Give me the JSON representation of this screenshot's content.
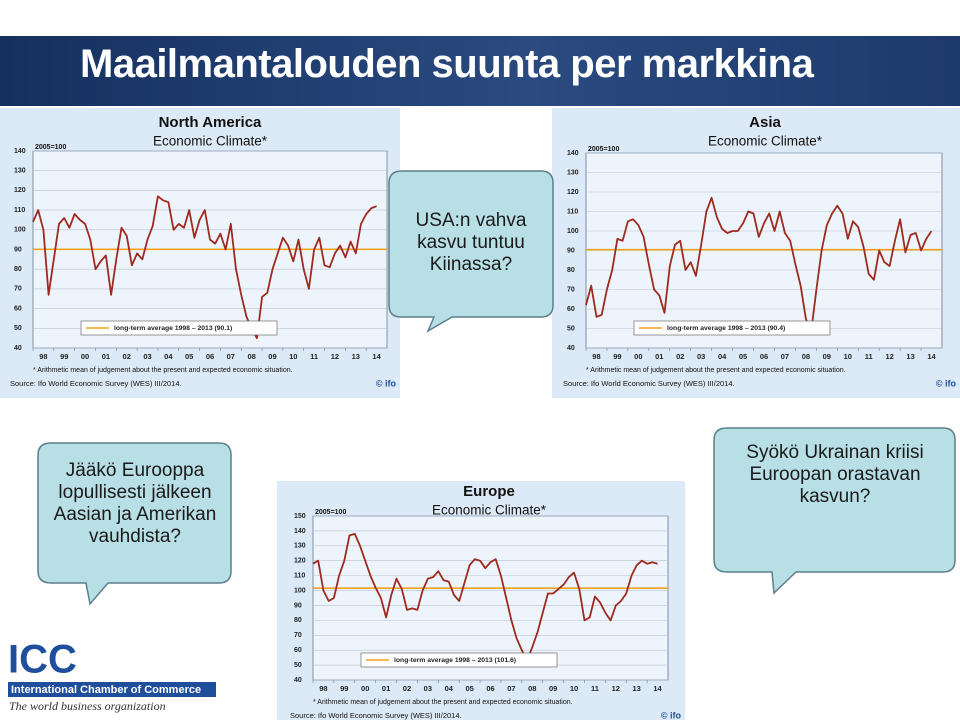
{
  "slide": {
    "title": "Maailmantalouden suunta per markkina",
    "callouts": [
      "USA:n vahva kasvu tuntuu Kiinassa?",
      "Jääkö Eurooppa lopullisesti jälkeen Aasian ja Amerikan vauhdista?",
      "Syökö Ukrainan kriisi Euroopan orastavan kasvun?"
    ],
    "logo": {
      "mark": "ICC",
      "name": "International Chamber of Commerce",
      "tagline": "The world business organization"
    }
  },
  "chart_data": [
    {
      "type": "line",
      "title": "North America",
      "subtitle": "Economic Climate*",
      "base_note": "2005=100",
      "footnote": "* Arithmetic mean of judgement about the present and expected economic situation.",
      "source": "Source: Ifo World Economic Survey (WES) III/2014.",
      "credit": "© ifo",
      "color": "#9e2a1e",
      "x": [
        1998,
        1998.25,
        1998.5,
        1998.75,
        1999,
        1999.25,
        1999.5,
        1999.75,
        2000,
        2000.25,
        2000.5,
        2000.75,
        2001,
        2001.25,
        2001.5,
        2001.75,
        2002,
        2002.25,
        2002.5,
        2002.75,
        2003,
        2003.25,
        2003.5,
        2003.75,
        2004,
        2004.25,
        2004.5,
        2004.75,
        2005,
        2005.25,
        2005.5,
        2005.75,
        2006,
        2006.25,
        2006.5,
        2006.75,
        2007,
        2007.25,
        2007.5,
        2007.75,
        2008,
        2008.25,
        2008.5,
        2008.75,
        2009,
        2009.25,
        2009.5,
        2009.75,
        2010,
        2010.25,
        2010.5,
        2010.75,
        2011,
        2011.25,
        2011.5,
        2011.75,
        2012,
        2012.25,
        2012.5,
        2012.75,
        2013,
        2013.25,
        2013.5,
        2013.75,
        2014,
        2014.25,
        2014.5
      ],
      "values": [
        104,
        110,
        100,
        67,
        85,
        103,
        106,
        101,
        108,
        105,
        103,
        95,
        80,
        84,
        87,
        67,
        85,
        101,
        97,
        82,
        88,
        85,
        95,
        102,
        117,
        115,
        114,
        100,
        103,
        101,
        110,
        96,
        105,
        110,
        95,
        93,
        98,
        90,
        103,
        80,
        67,
        56,
        50,
        45,
        66,
        68,
        80,
        88,
        96,
        92,
        84,
        95,
        80,
        70,
        90,
        96,
        82,
        81,
        88,
        92,
        86,
        94,
        88,
        103,
        108,
        111,
        112
      ],
      "reference": {
        "value": 90.1,
        "label": "long-term average 1998 – 2013 (90.1)",
        "color": "#f0a21e"
      },
      "xlim": [
        1998,
        2015
      ],
      "xticks": [
        {
          "value": 1998,
          "label": "98"
        },
        {
          "value": 1999,
          "label": "99"
        },
        {
          "value": 2000,
          "label": "00"
        },
        {
          "value": 2001,
          "label": "01"
        },
        {
          "value": 2002,
          "label": "02"
        },
        {
          "value": 2003,
          "label": "03"
        },
        {
          "value": 2004,
          "label": "04"
        },
        {
          "value": 2005,
          "label": "05"
        },
        {
          "value": 2006,
          "label": "06"
        },
        {
          "value": 2007,
          "label": "07"
        },
        {
          "value": 2008,
          "label": "08"
        },
        {
          "value": 2009,
          "label": "09"
        },
        {
          "value": 2010,
          "label": "10"
        },
        {
          "value": 2011,
          "label": "11"
        },
        {
          "value": 2012,
          "label": "12"
        },
        {
          "value": 2013,
          "label": "13"
        },
        {
          "value": 2014,
          "label": "14"
        }
      ],
      "ylim": [
        40,
        140
      ],
      "yticks": [
        40,
        50,
        60,
        70,
        80,
        90,
        100,
        110,
        120,
        130,
        140
      ],
      "grid": true
    },
    {
      "type": "line",
      "title": "Asia",
      "subtitle": "Economic Climate*",
      "base_note": "2005=100",
      "footnote": "* Arithmetic mean of judgement about the present and expected economic situation.",
      "source": "Source: Ifo World Economic Survey (WES) III/2014.",
      "credit": "© ifo",
      "color": "#9e2a1e",
      "x": [
        1998,
        1998.25,
        1998.5,
        1998.75,
        1999,
        1999.25,
        1999.5,
        1999.75,
        2000,
        2000.25,
        2000.5,
        2000.75,
        2001,
        2001.25,
        2001.5,
        2001.75,
        2002,
        2002.25,
        2002.5,
        2002.75,
        2003,
        2003.25,
        2003.5,
        2003.75,
        2004,
        2004.25,
        2004.5,
        2004.75,
        2005,
        2005.25,
        2005.5,
        2005.75,
        2006,
        2006.25,
        2006.5,
        2006.75,
        2007,
        2007.25,
        2007.5,
        2007.75,
        2008,
        2008.25,
        2008.5,
        2008.75,
        2009,
        2009.25,
        2009.5,
        2009.75,
        2010,
        2010.25,
        2010.5,
        2010.75,
        2011,
        2011.25,
        2011.5,
        2011.75,
        2012,
        2012.25,
        2012.5,
        2012.75,
        2013,
        2013.25,
        2013.5,
        2013.75,
        2014,
        2014.25,
        2014.5
      ],
      "values": [
        62,
        72,
        56,
        57,
        70,
        80,
        96,
        95,
        105,
        106,
        103,
        97,
        83,
        70,
        67,
        58,
        82,
        93,
        95,
        80,
        84,
        77,
        93,
        110,
        117,
        107,
        101,
        99,
        100,
        100,
        104,
        110,
        109,
        97,
        104,
        109,
        100,
        110,
        99,
        95,
        83,
        72,
        55,
        48,
        70,
        90,
        103,
        109,
        113,
        109,
        96,
        105,
        102,
        92,
        78,
        75,
        90,
        84,
        82,
        95,
        106,
        89,
        98,
        99,
        90,
        96,
        100
      ],
      "reference": {
        "value": 90.4,
        "label": "long-term average 1998 – 2013 (90.4)",
        "color": "#f0a21e"
      },
      "xlim": [
        1998,
        2015
      ],
      "xticks": [
        {
          "value": 1998,
          "label": "98"
        },
        {
          "value": 1999,
          "label": "99"
        },
        {
          "value": 2000,
          "label": "00"
        },
        {
          "value": 2001,
          "label": "01"
        },
        {
          "value": 2002,
          "label": "02"
        },
        {
          "value": 2003,
          "label": "03"
        },
        {
          "value": 2004,
          "label": "04"
        },
        {
          "value": 2005,
          "label": "05"
        },
        {
          "value": 2006,
          "label": "06"
        },
        {
          "value": 2007,
          "label": "07"
        },
        {
          "value": 2008,
          "label": "08"
        },
        {
          "value": 2009,
          "label": "09"
        },
        {
          "value": 2010,
          "label": "10"
        },
        {
          "value": 2011,
          "label": "11"
        },
        {
          "value": 2012,
          "label": "12"
        },
        {
          "value": 2013,
          "label": "13"
        },
        {
          "value": 2014,
          "label": "14"
        }
      ],
      "ylim": [
        40,
        140
      ],
      "yticks": [
        40,
        50,
        60,
        70,
        80,
        90,
        100,
        110,
        120,
        130,
        140
      ],
      "grid": true
    },
    {
      "type": "line",
      "title": "Europe",
      "subtitle": "Economic Climate*",
      "base_note": "2005=100",
      "footnote": "* Arithmetic mean of judgement about the present and expected economic situation.",
      "source": "Source: Ifo World Economic Survey (WES) III/2014.",
      "credit": "© ifo",
      "color": "#9e2a1e",
      "x": [
        1998,
        1998.25,
        1998.5,
        1998.75,
        1999,
        1999.25,
        1999.5,
        1999.75,
        2000,
        2000.25,
        2000.5,
        2000.75,
        2001,
        2001.25,
        2001.5,
        2001.75,
        2002,
        2002.25,
        2002.5,
        2002.75,
        2003,
        2003.25,
        2003.5,
        2003.75,
        2004,
        2004.25,
        2004.5,
        2004.75,
        2005,
        2005.25,
        2005.5,
        2005.75,
        2006,
        2006.25,
        2006.5,
        2006.75,
        2007,
        2007.25,
        2007.5,
        2007.75,
        2008,
        2008.25,
        2008.5,
        2008.75,
        2009,
        2009.25,
        2009.5,
        2009.75,
        2010,
        2010.25,
        2010.5,
        2010.75,
        2011,
        2011.25,
        2011.5,
        2011.75,
        2012,
        2012.25,
        2012.5,
        2012.75,
        2013,
        2013.25,
        2013.5,
        2013.75,
        2014,
        2014.25,
        2014.5
      ],
      "values": [
        118,
        120,
        100,
        93,
        95,
        110,
        120,
        137,
        138,
        130,
        120,
        110,
        102,
        95,
        82,
        97,
        108,
        101,
        87,
        88,
        87,
        100,
        108,
        109,
        113,
        107,
        106,
        97,
        93,
        105,
        117,
        121,
        120,
        115,
        119,
        121,
        110,
        95,
        80,
        68,
        60,
        53,
        62,
        72,
        85,
        98,
        98,
        101,
        104,
        109,
        112,
        101,
        80,
        82,
        96,
        92,
        85,
        80,
        90,
        93,
        98,
        110,
        117,
        120,
        118,
        119,
        118
      ],
      "reference": {
        "value": 101.6,
        "label": "long-term average 1998 – 2013 (101.6)",
        "color": "#f0a21e"
      },
      "xlim": [
        1998,
        2015
      ],
      "xticks": [
        {
          "value": 1998,
          "label": "98"
        },
        {
          "value": 1999,
          "label": "99"
        },
        {
          "value": 2000,
          "label": "00"
        },
        {
          "value": 2001,
          "label": "01"
        },
        {
          "value": 2002,
          "label": "02"
        },
        {
          "value": 2003,
          "label": "03"
        },
        {
          "value": 2004,
          "label": "04"
        },
        {
          "value": 2005,
          "label": "05"
        },
        {
          "value": 2006,
          "label": "06"
        },
        {
          "value": 2007,
          "label": "07"
        },
        {
          "value": 2008,
          "label": "08"
        },
        {
          "value": 2009,
          "label": "09"
        },
        {
          "value": 2010,
          "label": "10"
        },
        {
          "value": 2011,
          "label": "11"
        },
        {
          "value": 2012,
          "label": "12"
        },
        {
          "value": 2013,
          "label": "13"
        },
        {
          "value": 2014,
          "label": "14"
        }
      ],
      "ylim": [
        40,
        150
      ],
      "yticks": [
        40,
        50,
        60,
        70,
        80,
        90,
        100,
        110,
        120,
        130,
        140,
        150
      ],
      "grid": true
    }
  ]
}
